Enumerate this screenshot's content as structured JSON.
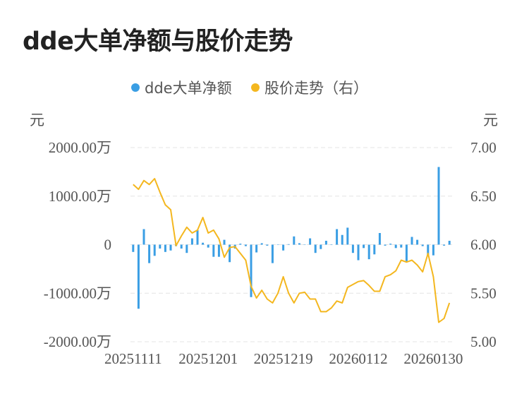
{
  "title": "dde大单净额与股价走势",
  "chart_data": {
    "type": "bar+line",
    "legend": [
      {
        "name": "dde大单净额",
        "color": "#3a9ee4"
      },
      {
        "name": "股价走势（右）",
        "color": "#f4b71f"
      }
    ],
    "left_unit": "元",
    "right_unit": "元",
    "left_ticks": [
      "2000.00万",
      "1000.00万",
      "0",
      "-1000.00万",
      "-2000.00万"
    ],
    "right_ticks": [
      "7.00",
      "6.50",
      "6.00",
      "5.50",
      "5.00"
    ],
    "left_range": [
      -2000,
      2000
    ],
    "right_range": [
      5.0,
      7.0
    ],
    "x_tick_labels": [
      "20251111",
      "20251201",
      "20251219",
      "20260112",
      "20260130"
    ],
    "x_tick_index": [
      0,
      14,
      28,
      42,
      56
    ],
    "bar_values": [
      -150,
      -1320,
      320,
      -380,
      -230,
      -80,
      -150,
      -120,
      -30,
      -80,
      -170,
      130,
      300,
      40,
      -60,
      -250,
      -250,
      100,
      -360,
      -80,
      20,
      -30,
      -1080,
      -160,
      30,
      -20,
      -380,
      0,
      -120,
      10,
      170,
      30,
      0,
      130,
      -170,
      -90,
      80,
      0,
      320,
      200,
      350,
      -170,
      -320,
      -70,
      -300,
      -200,
      240,
      -20,
      20,
      -70,
      -60,
      -340,
      160,
      100,
      -30,
      -220,
      -220,
      1600,
      -20,
      80
    ],
    "line_values": [
      6.62,
      6.57,
      6.66,
      6.62,
      6.68,
      6.54,
      6.41,
      6.36,
      5.99,
      6.09,
      6.18,
      6.12,
      6.15,
      6.28,
      6.12,
      6.15,
      6.06,
      5.87,
      5.97,
      5.98,
      5.91,
      5.84,
      5.57,
      5.45,
      5.53,
      5.44,
      5.4,
      5.5,
      5.67,
      5.5,
      5.4,
      5.5,
      5.51,
      5.44,
      5.44,
      5.31,
      5.31,
      5.35,
      5.42,
      5.4,
      5.56,
      5.59,
      5.62,
      5.63,
      5.58,
      5.52,
      5.52,
      5.67,
      5.69,
      5.73,
      5.84,
      5.82,
      5.84,
      5.79,
      5.72,
      5.91,
      5.67,
      5.2,
      5.24,
      5.4
    ]
  }
}
